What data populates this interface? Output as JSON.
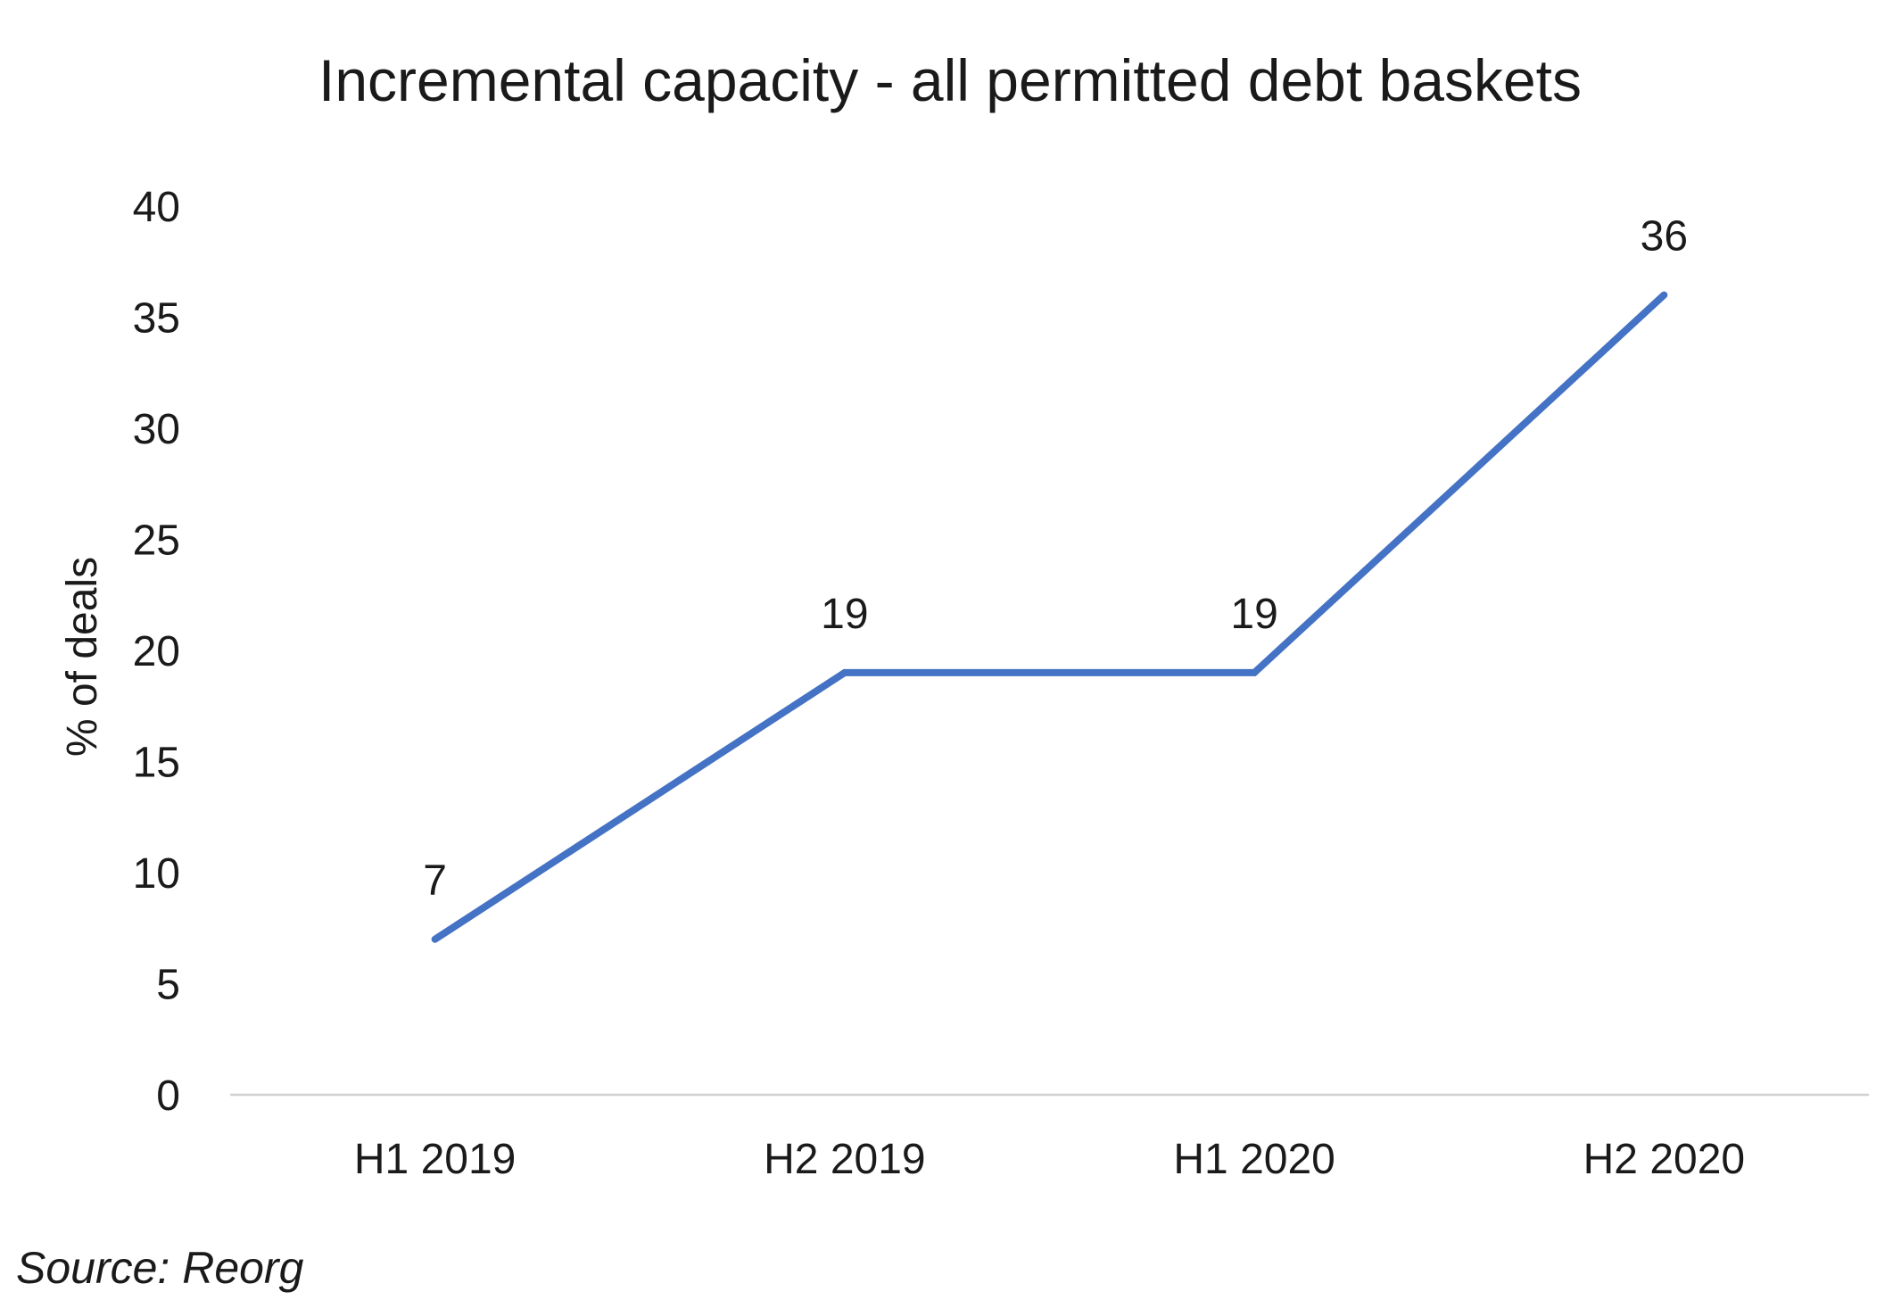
{
  "chart_data": {
    "type": "line",
    "title": "Incremental capacity - all permitted debt baskets",
    "xlabel": "",
    "ylabel": "% of deals",
    "categories": [
      "H1 2019",
      "H2 2019",
      "H1 2020",
      "H2 2020"
    ],
    "series": [
      {
        "values": [
          7,
          19,
          19,
          36
        ],
        "color": "#4472C4",
        "data_labels": [
          "7",
          "19",
          "19",
          "36"
        ]
      }
    ],
    "ylim": [
      0,
      40
    ],
    "yticks": [
      "0",
      "5",
      "10",
      "15",
      "20",
      "25",
      "30",
      "35",
      "40"
    ],
    "grid": false,
    "legend": "none"
  },
  "footer": {
    "source": "Source: Reorg"
  }
}
